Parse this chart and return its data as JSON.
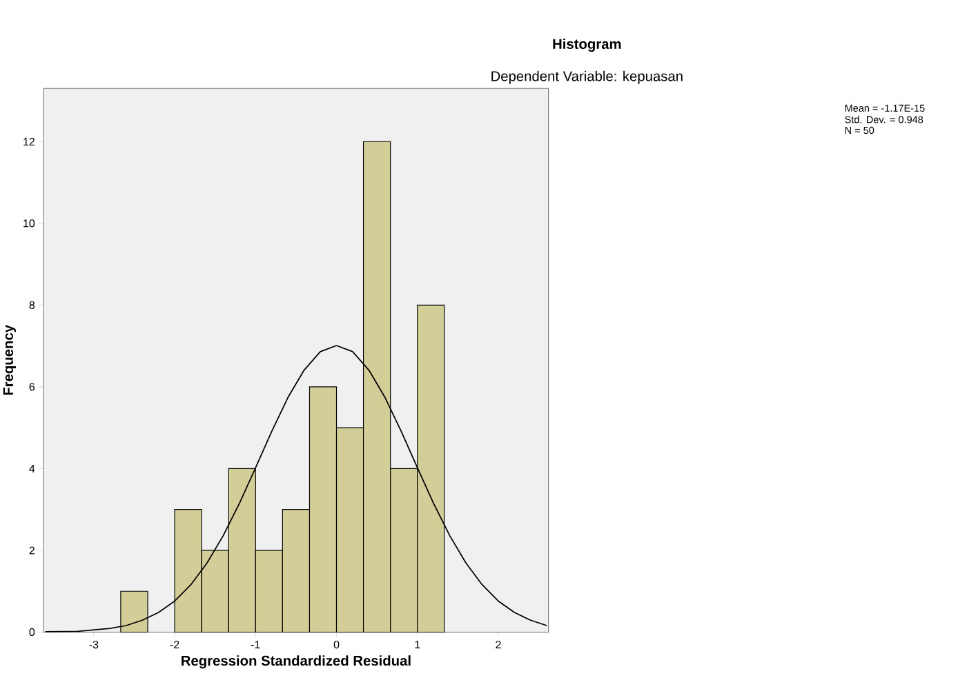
{
  "chart_data": {
    "type": "histogram",
    "title": "Histogram",
    "subtitle": "Dependent Variable: kepuasan",
    "xlabel": "Regression Standardized Residual",
    "ylabel": "Frequency",
    "bins": [
      -2.667,
      -2.333,
      -2,
      -1.667,
      -1.333,
      -1,
      -0.667,
      -0.333,
      0,
      0.333,
      0.667,
      1,
      1.333
    ],
    "values": [
      1,
      0,
      3,
      2,
      4,
      2,
      3,
      6,
      5,
      12,
      4,
      8
    ],
    "color": "#d3ce97",
    "series": [
      {
        "type": "line",
        "color": "#000000",
        "x": [
          -3.6,
          -3.2,
          -2.8,
          -2.6,
          -2.4,
          -2.2,
          -2.0,
          -1.8,
          -1.6,
          -1.4,
          -1.2,
          -1.0,
          -0.8,
          -0.6,
          -0.4,
          -0.2,
          0,
          0.2,
          0.4,
          0.6,
          0.8,
          1.0,
          1.2,
          1.4,
          1.6,
          1.8,
          2.0,
          2.2,
          2.4,
          2.6
        ],
        "values": [
          0.01,
          0.02,
          0.09,
          0.16,
          0.29,
          0.48,
          0.76,
          1.16,
          1.69,
          2.36,
          3.15,
          4.02,
          4.91,
          5.74,
          6.41,
          6.86,
          7.01,
          6.86,
          6.41,
          5.74,
          4.91,
          4.02,
          3.15,
          2.36,
          1.69,
          1.16,
          0.76,
          0.48,
          0.29,
          0.16
        ]
      }
    ],
    "xlim": [
      -3.62,
      2.62
    ],
    "ylim": [
      0,
      13.3
    ],
    "xticks": [
      -3,
      -2,
      -1,
      0,
      1,
      2
    ],
    "yticks": [
      0,
      2,
      4,
      6,
      8,
      10,
      12
    ],
    "annotations": [
      "Mean = -1.17E-15",
      "Std. Dev. = 0.948",
      "N = 50"
    ]
  }
}
